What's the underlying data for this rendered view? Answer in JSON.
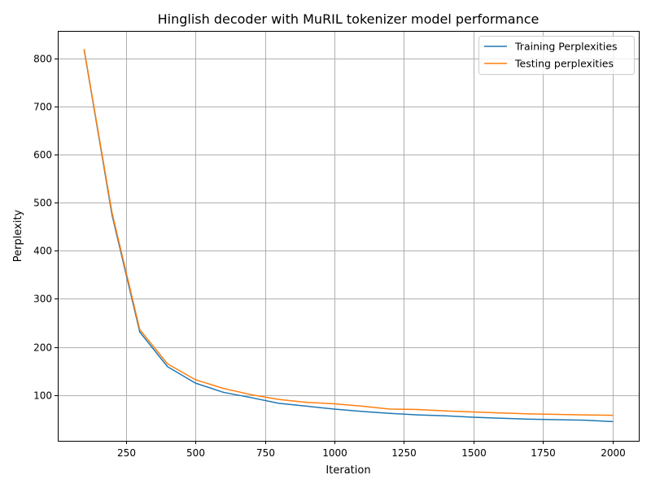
{
  "chart_data": {
    "type": "line",
    "title": "Hinglish decoder with MuRIL tokenizer model performance",
    "xlabel": "Iteration",
    "ylabel": "Perplexity",
    "xlim": [
      5,
      2095
    ],
    "ylim": [
      5,
      857
    ],
    "xticks": [
      250,
      500,
      750,
      1000,
      1250,
      1500,
      1750,
      2000
    ],
    "yticks": [
      100,
      200,
      300,
      400,
      500,
      600,
      700,
      800
    ],
    "grid": true,
    "legend_position": "top-right",
    "x": [
      100,
      200,
      300,
      400,
      500,
      600,
      700,
      800,
      900,
      1000,
      1100,
      1200,
      1300,
      1400,
      1500,
      1600,
      1700,
      1800,
      1900,
      2000
    ],
    "series": [
      {
        "name": "Training Perplexities",
        "color": "#1f77b4",
        "values": [
          817,
          475,
          231,
          159,
          125,
          106,
          95,
          83,
          77,
          71,
          66,
          62,
          59,
          57,
          54,
          52,
          50,
          49,
          48,
          45
        ]
      },
      {
        "name": "Testing perplexities",
        "color": "#ff7f0e",
        "values": [
          818,
          480,
          236,
          165,
          132,
          114,
          101,
          91,
          85,
          82,
          77,
          71,
          70,
          67,
          65,
          63,
          61,
          60,
          59,
          58
        ]
      }
    ]
  }
}
